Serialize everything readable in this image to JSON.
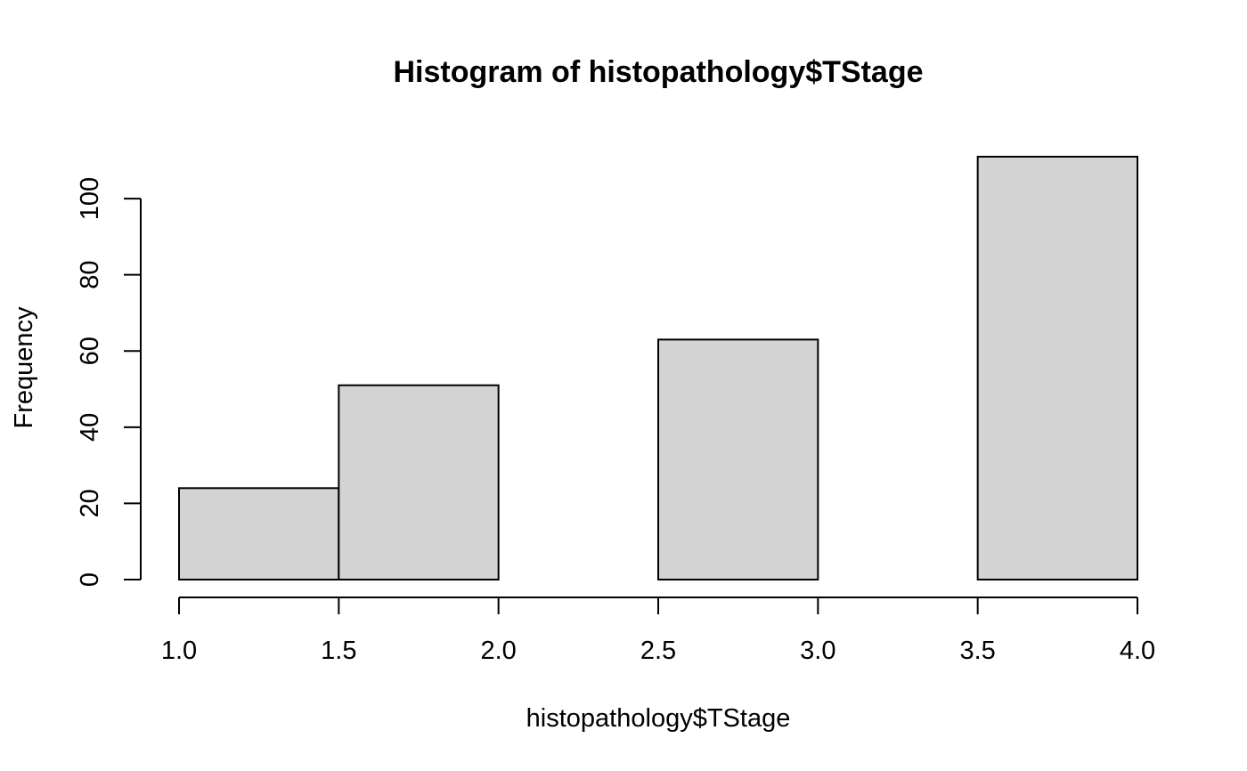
{
  "chart_data": {
    "type": "bar",
    "title": "Histogram of histopathology$TStage",
    "xlabel": "histopathology$TStage",
    "ylabel": "Frequency",
    "bins": [
      {
        "start": 1.0,
        "end": 1.5,
        "value": 24
      },
      {
        "start": 1.5,
        "end": 2.0,
        "value": 51
      },
      {
        "start": 2.0,
        "end": 2.5,
        "value": 0
      },
      {
        "start": 2.5,
        "end": 3.0,
        "value": 63
      },
      {
        "start": 3.0,
        "end": 3.5,
        "value": 0
      },
      {
        "start": 3.5,
        "end": 4.0,
        "value": 111
      }
    ],
    "xlim": [
      1.0,
      4.0
    ],
    "ylim": [
      0,
      111
    ],
    "x_ticks": [
      "1.0",
      "1.5",
      "2.0",
      "2.5",
      "3.0",
      "3.5",
      "4.0"
    ],
    "y_ticks": [
      "0",
      "20",
      "40",
      "60",
      "80",
      "100"
    ],
    "bar_color": "#d3d3d3",
    "bar_border_color": "#000000",
    "grid": false,
    "legend": "none"
  }
}
